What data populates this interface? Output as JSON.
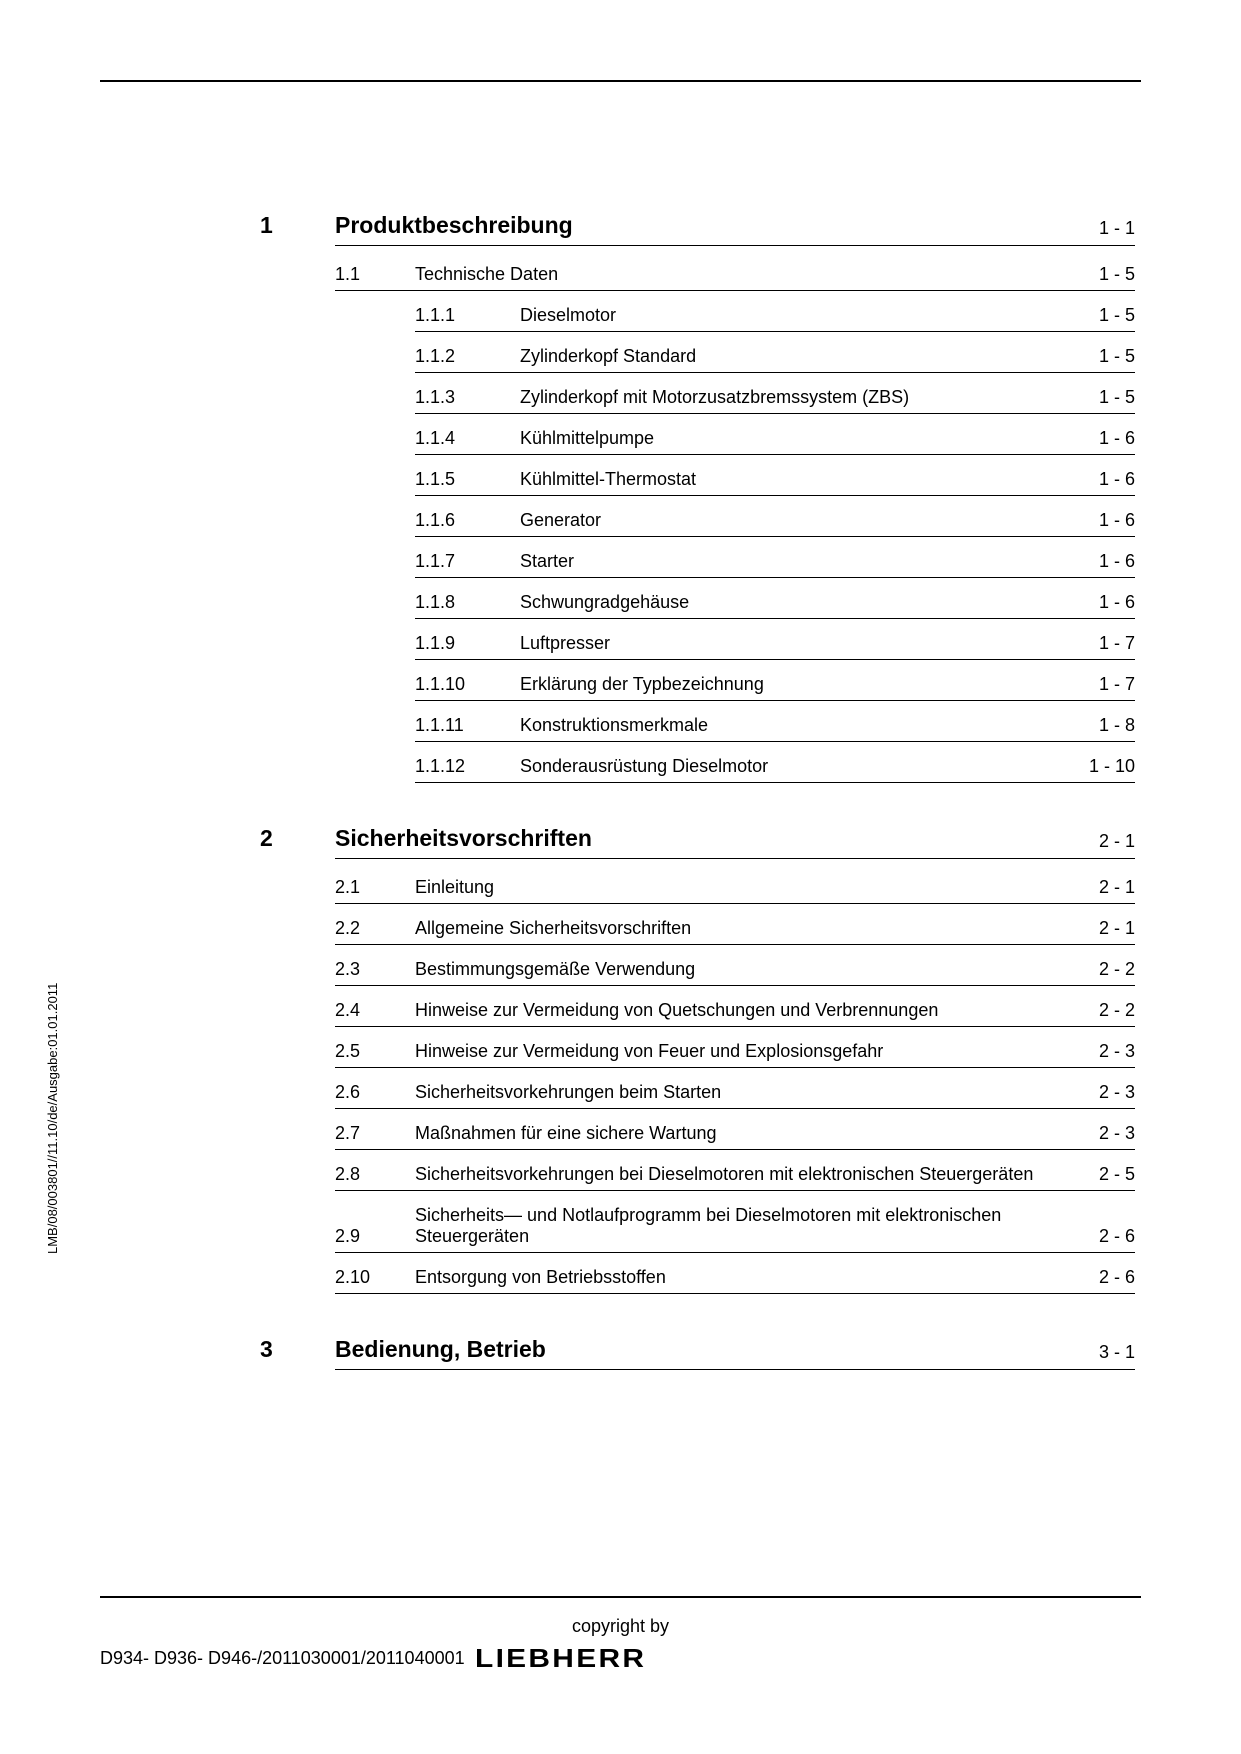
{
  "side_text": "LMB/08/003801//11.10/de/Ausgabe:01.01.2011",
  "footer": {
    "copyright": "copyright by",
    "doc_id": "D934- D936- D946-/2011030001/2011040001",
    "brand": "LIEBHERR"
  },
  "toc": [
    {
      "num": "1",
      "title": "Produktbeschreibung",
      "page": "1 - 1",
      "subs": [
        {
          "num": "1.1",
          "title": "Technische Daten",
          "page": "1 - 5",
          "subsubs": [
            {
              "num": "1.1.1",
              "title": "Dieselmotor",
              "page": "1 - 5"
            },
            {
              "num": "1.1.2",
              "title": "Zylinderkopf Standard",
              "page": "1 - 5"
            },
            {
              "num": "1.1.3",
              "title": "Zylinderkopf mit Motorzusatzbremssystem (ZBS)",
              "page": "1 - 5"
            },
            {
              "num": "1.1.4",
              "title": "Kühlmittelpumpe",
              "page": "1 - 6"
            },
            {
              "num": "1.1.5",
              "title": "Kühlmittel-Thermostat",
              "page": "1 - 6"
            },
            {
              "num": "1.1.6",
              "title": "Generator",
              "page": "1 - 6"
            },
            {
              "num": "1.1.7",
              "title": "Starter",
              "page": "1 - 6"
            },
            {
              "num": "1.1.8",
              "title": "Schwungradgehäuse",
              "page": "1 - 6"
            },
            {
              "num": "1.1.9",
              "title": "Luftpresser",
              "page": "1 - 7"
            },
            {
              "num": "1.1.10",
              "title": "Erklärung der Typbezeichnung",
              "page": "1 - 7"
            },
            {
              "num": "1.1.11",
              "title": "Konstruktionsmerkmale",
              "page": "1 - 8"
            },
            {
              "num": "1.1.12",
              "title": "Sonderausrüstung Dieselmotor",
              "page": "1 - 10"
            }
          ]
        }
      ]
    },
    {
      "num": "2",
      "title": "Sicherheitsvorschriften",
      "page": "2 - 1",
      "subs": [
        {
          "num": "2.1",
          "title": "Einleitung",
          "page": "2 - 1"
        },
        {
          "num": "2.2",
          "title": "Allgemeine Sicherheitsvorschriften",
          "page": "2 - 1"
        },
        {
          "num": "2.3",
          "title": "Bestimmungsgemäße Verwendung",
          "page": "2 - 2"
        },
        {
          "num": "2.4",
          "title": "Hinweise zur Vermeidung von Quetschungen und Verbrennungen",
          "page": "2 - 2"
        },
        {
          "num": "2.5",
          "title": "Hinweise zur Vermeidung von Feuer und Explosionsgefahr",
          "page": "2 - 3"
        },
        {
          "num": "2.6",
          "title": "Sicherheitsvorkehrungen beim Starten",
          "page": "2 - 3"
        },
        {
          "num": "2.7",
          "title": "Maßnahmen für eine sichere Wartung",
          "page": "2 - 3"
        },
        {
          "num": "2.8",
          "title": "Sicherheitsvorkehrungen bei Dieselmotoren mit elektronischen Steuergeräten",
          "page": "2 - 5"
        },
        {
          "num": "2.9",
          "title": "Sicherheits— und Notlaufprogramm bei Dieselmotoren mit elektronischen Steuergeräten",
          "page": "2 - 6"
        },
        {
          "num": "2.10",
          "title": "Entsorgung von Betriebsstoffen",
          "page": "2 - 6"
        }
      ]
    },
    {
      "num": "3",
      "title": "Bedienung, Betrieb",
      "page": "3 - 1",
      "subs": []
    }
  ]
}
